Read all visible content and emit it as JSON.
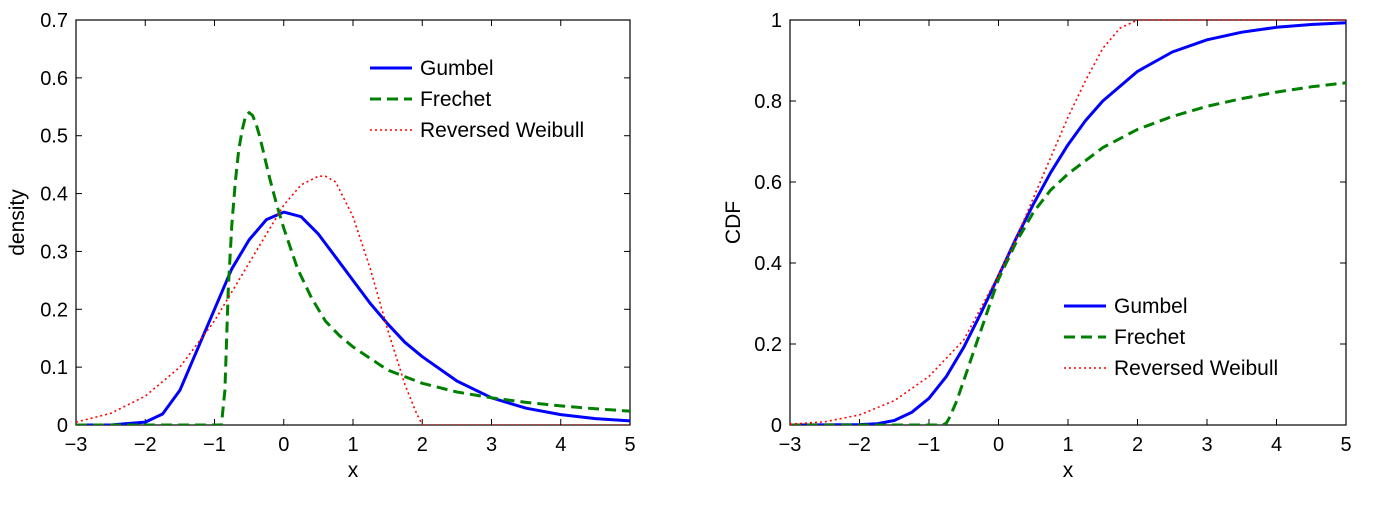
{
  "chart_data": [
    {
      "type": "line",
      "title": "",
      "xlabel": "x",
      "ylabel": "density",
      "xlim": [
        -3,
        5
      ],
      "ylim": [
        0,
        0.7
      ],
      "xticks": [
        "−3",
        "−2",
        "−1",
        "0",
        "1",
        "2",
        "3",
        "4",
        "5"
      ],
      "yticks": [
        "0",
        "0.1",
        "0.2",
        "0.3",
        "0.4",
        "0.5",
        "0.6",
        "0.7"
      ],
      "grid": false,
      "legend_position": "top-right",
      "series": [
        {
          "name": "Gumbel",
          "color": "#0000ff",
          "style": "solid",
          "x": [
            -3,
            -2.5,
            -2,
            -1.75,
            -1.5,
            -1.25,
            -1,
            -0.75,
            -0.5,
            -0.25,
            0,
            0.25,
            0.5,
            0.75,
            1,
            1.25,
            1.5,
            1.75,
            2,
            2.5,
            3,
            3.5,
            4,
            4.5,
            5
          ],
          "y": [
            0,
            0.0,
            0.005,
            0.019,
            0.06,
            0.13,
            0.2,
            0.27,
            0.32,
            0.355,
            0.368,
            0.36,
            0.33,
            0.29,
            0.25,
            0.21,
            0.175,
            0.143,
            0.118,
            0.076,
            0.047,
            0.029,
            0.018,
            0.011,
            0.007
          ]
        },
        {
          "name": "Frechet",
          "color": "#008000",
          "style": "dashed",
          "x": [
            -3,
            -0.9,
            -0.85,
            -0.8,
            -0.75,
            -0.7,
            -0.65,
            -0.6,
            -0.55,
            -0.5,
            -0.45,
            -0.4,
            -0.35,
            -0.3,
            -0.25,
            -0.2,
            -0.1,
            0,
            0.2,
            0.4,
            0.6,
            0.8,
            1,
            1.5,
            2,
            2.5,
            3,
            3.5,
            4,
            4.5,
            5
          ],
          "y": [
            0,
            0,
            0.06,
            0.24,
            0.345,
            0.42,
            0.475,
            0.51,
            0.535,
            0.54,
            0.535,
            0.52,
            0.5,
            0.475,
            0.45,
            0.425,
            0.38,
            0.34,
            0.27,
            0.22,
            0.18,
            0.155,
            0.135,
            0.095,
            0.072,
            0.057,
            0.047,
            0.039,
            0.033,
            0.028,
            0.024
          ]
        },
        {
          "name": "Reversed Weibull",
          "color": "#ff0000",
          "style": "dotted",
          "x": [
            -3,
            -2.5,
            -2,
            -1.5,
            -1,
            -0.5,
            0,
            0.25,
            0.5,
            0.6,
            0.75,
            1,
            1.25,
            1.5,
            1.75,
            1.9,
            2,
            2.5,
            3,
            4,
            5
          ],
          "y": [
            0.005,
            0.02,
            0.05,
            0.1,
            0.18,
            0.28,
            0.38,
            0.415,
            0.43,
            0.43,
            0.42,
            0.36,
            0.27,
            0.165,
            0.07,
            0.025,
            0,
            0,
            0,
            0,
            0
          ]
        }
      ]
    },
    {
      "type": "line",
      "title": "",
      "xlabel": "x",
      "ylabel": "CDF",
      "xlim": [
        -3,
        5
      ],
      "ylim": [
        0,
        1
      ],
      "xticks": [
        "−3",
        "−2",
        "−1",
        "0",
        "1",
        "2",
        "3",
        "4",
        "5"
      ],
      "yticks": [
        "0",
        "0.2",
        "0.4",
        "0.6",
        "0.8",
        "1"
      ],
      "grid": false,
      "legend_position": "bottom-right",
      "series": [
        {
          "name": "Gumbel",
          "color": "#0000ff",
          "style": "solid",
          "x": [
            -3,
            -2,
            -1.75,
            -1.5,
            -1.25,
            -1,
            -0.75,
            -0.5,
            -0.25,
            0,
            0.25,
            0.5,
            0.75,
            1,
            1.25,
            1.5,
            2,
            2.5,
            3,
            3.5,
            4,
            4.5,
            5
          ],
          "y": [
            0,
            0.001,
            0.003,
            0.011,
            0.031,
            0.066,
            0.12,
            0.192,
            0.277,
            0.368,
            0.46,
            0.545,
            0.623,
            0.692,
            0.751,
            0.8,
            0.873,
            0.921,
            0.951,
            0.97,
            0.982,
            0.989,
            0.993
          ]
        },
        {
          "name": "Frechet",
          "color": "#008000",
          "style": "dashed",
          "x": [
            -3,
            -0.8,
            -0.75,
            -0.7,
            -0.6,
            -0.5,
            -0.4,
            -0.3,
            -0.2,
            -0.1,
            0,
            0.25,
            0.5,
            0.75,
            1,
            1.5,
            2,
            2.5,
            3,
            3.5,
            4,
            4.5,
            5
          ],
          "y": [
            0,
            0,
            0.005,
            0.02,
            0.06,
            0.11,
            0.16,
            0.21,
            0.26,
            0.31,
            0.36,
            0.45,
            0.525,
            0.58,
            0.62,
            0.685,
            0.73,
            0.762,
            0.787,
            0.806,
            0.822,
            0.835,
            0.845
          ]
        },
        {
          "name": "Reversed Weibull",
          "color": "#ff0000",
          "style": "dotted",
          "x": [
            -3,
            -2.5,
            -2,
            -1.5,
            -1,
            -0.5,
            0,
            0.25,
            0.5,
            0.75,
            1,
            1.25,
            1.5,
            1.75,
            2,
            3,
            4,
            5
          ],
          "y": [
            0.002,
            0.008,
            0.025,
            0.06,
            0.12,
            0.21,
            0.37,
            0.46,
            0.56,
            0.66,
            0.76,
            0.85,
            0.93,
            0.98,
            1.0,
            1.0,
            1.0,
            1.0
          ]
        }
      ]
    }
  ]
}
